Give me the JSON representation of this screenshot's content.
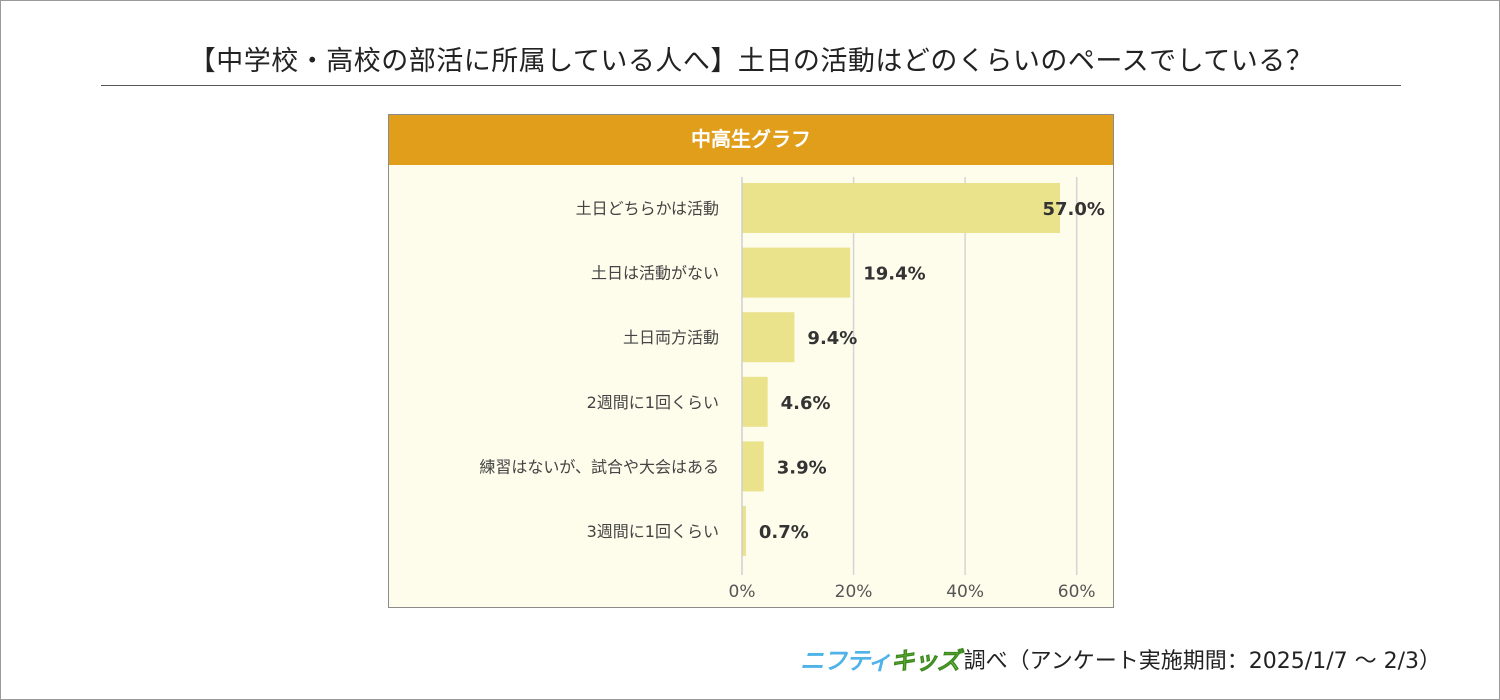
{
  "title": "【中学校・高校の部活に所属している人へ】土日の活動はどのくらいのペースでしている？",
  "chart_header": "中高生グラフ",
  "chart_data": {
    "type": "bar",
    "orientation": "horizontal",
    "categories": [
      "土日どちらかは活動",
      "土日は活動がない",
      "土日両方活動",
      "2週間に1回くらい",
      "練習はないが、試合や大会はある",
      "3週間に1回くらい"
    ],
    "values": [
      57.0,
      19.4,
      9.4,
      4.6,
      3.9,
      0.7
    ],
    "value_labels": [
      "57.0%",
      "19.4%",
      "9.4%",
      "4.6%",
      "3.9%",
      "0.7%"
    ],
    "xticks": [
      0,
      20,
      40,
      60
    ],
    "xtick_labels": [
      "0%",
      "20%",
      "40%",
      "60%"
    ],
    "xlim": [
      0,
      64
    ],
    "grid": true,
    "bar_color": "#ebe28c",
    "gridline_color": "#d4d4d4"
  },
  "footer": {
    "logo_part1": "ニフティ",
    "logo_part2": "キッズ",
    "text": "調べ（アンケート実施期間：2025/1/7 ～ 2/3）"
  }
}
